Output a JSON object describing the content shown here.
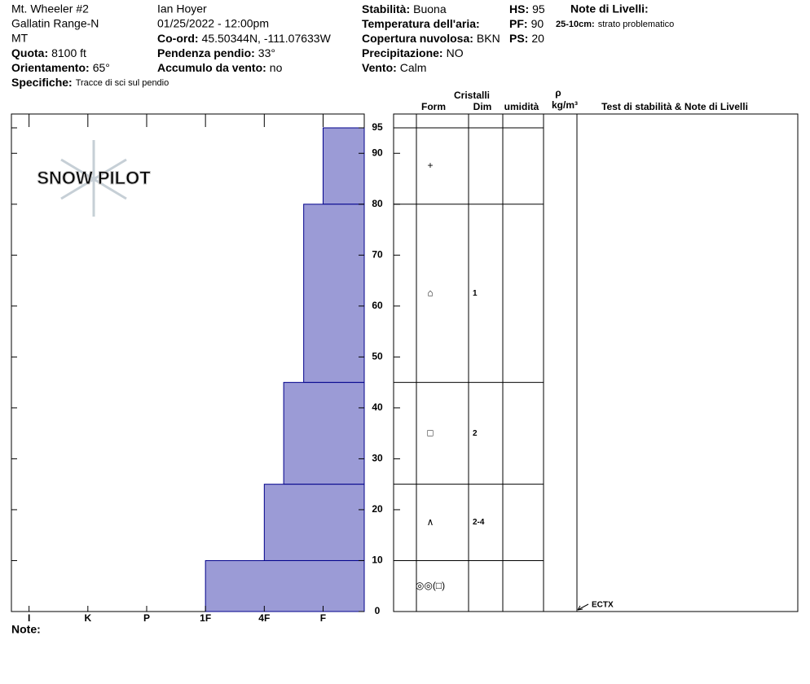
{
  "header": {
    "site": "Mt. Wheeler #2",
    "range": "Gallatin Range-N",
    "state": "MT",
    "elevation": {
      "label": "Quota:",
      "value": "8100 ft"
    },
    "aspect": {
      "label": "Orientamento:",
      "value": "65°"
    },
    "specifics": {
      "label": "Specifiche:",
      "value": "Tracce di sci sul pendio"
    },
    "observer": "Ian Hoyer",
    "datetime": "01/25/2022 - 12:00pm",
    "coords": {
      "label": "Co-ord:",
      "value": "45.50344N, -111.07633W"
    },
    "slope": {
      "label": "Pendenza pendio:",
      "value": "33°"
    },
    "wind_loading": {
      "label": "Accumulo da vento:",
      "value": "no"
    },
    "stability": {
      "label": "Stabilità:",
      "value": "Buona"
    },
    "air_temp": {
      "label": "Temperatura dell'aria:"
    },
    "sky": {
      "label": "Copertura nuvolosa:",
      "value": "BKN"
    },
    "precip": {
      "label": "Precipitazione:",
      "value": "NO"
    },
    "wind": {
      "label": "Vento:",
      "value": "Calm"
    },
    "hs": {
      "label": "HS:",
      "value": 95
    },
    "pf": {
      "label": "PF:",
      "value": 90
    },
    "ps": {
      "label": "PS:",
      "value": 20
    },
    "layer_notes_title": "Note di Livelli:",
    "layer_note": {
      "label": "25-10cm:",
      "value": "strato problematico"
    }
  },
  "chart_data": {
    "type": "snowpit",
    "logo": "SNOW PILOT",
    "color": "#9b9bd6",
    "stroke": "#00008b",
    "ylim": [
      0,
      95
    ],
    "yticks": [
      0,
      10,
      20,
      30,
      40,
      50,
      60,
      70,
      80,
      90,
      95
    ],
    "xlim": [
      6.3,
      0.3
    ],
    "xticks": [
      {
        "value": 6,
        "label": "I"
      },
      {
        "value": 5,
        "label": "K"
      },
      {
        "value": 4,
        "label": "P"
      },
      {
        "value": 3,
        "label": "1F"
      },
      {
        "value": 2,
        "label": "4F"
      },
      {
        "value": 1,
        "label": "F"
      }
    ],
    "columns": {
      "crystals": "Cristalli",
      "form": "Form",
      "size": "Dim",
      "moisture": "umidità",
      "density": "ρ",
      "density_unit": "kg/m³",
      "tests": "Test di stabilità & Note di Livelli"
    },
    "layers": [
      {
        "top": 95,
        "bottom": 80,
        "hardness": 1,
        "form": "+"
      },
      {
        "top": 80,
        "bottom": 45,
        "hardness": 1.33,
        "form": "⌂",
        "size": "1"
      },
      {
        "top": 45,
        "bottom": 25,
        "hardness": 1.67,
        "form": "□",
        "size": "2"
      },
      {
        "top": 25,
        "bottom": 10,
        "hardness": 2,
        "form": "∧",
        "size": "2-4"
      },
      {
        "top": 10,
        "bottom": 0,
        "hardness": 3,
        "form": "◎◎(□)"
      }
    ],
    "stability_tests": [
      {
        "label": "ECTX",
        "depth": 0
      }
    ],
    "note": "Note:"
  }
}
